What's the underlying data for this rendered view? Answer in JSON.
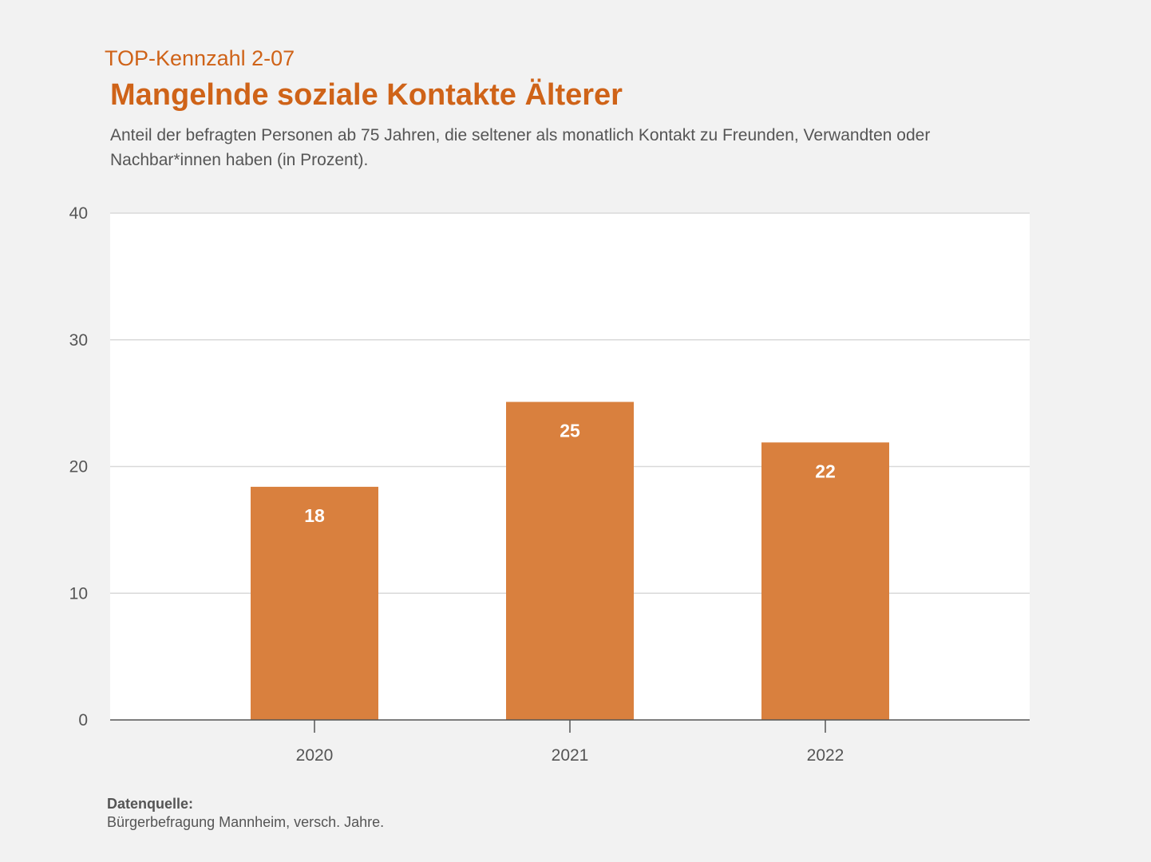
{
  "header": {
    "kicker": "TOP-Kennzahl 2-07",
    "title": "Mangelnde soziale Kontakte Älterer",
    "subtitle": "Anteil der befragten Personen ab 75 Jahren, die seltener als monatlich Kontakt zu Freunden, Verwandten oder Nachbar*innen haben (in Prozent)."
  },
  "chart_data": {
    "type": "bar",
    "title": "Mangelnde soziale Kontakte Älterer",
    "subtitle": "Anteil der befragten Personen ab 75 Jahren, die seltener als monatlich Kontakt zu Freunden, Verwandten oder Nachbar*innen haben (in Prozent).",
    "categories": [
      "2020",
      "2021",
      "2022"
    ],
    "values": [
      18.4,
      25.1,
      21.9
    ],
    "value_labels": [
      "18",
      "25",
      "22"
    ],
    "xlabel": "",
    "ylabel": "",
    "ylim": [
      0,
      40
    ],
    "yticks": [
      "0",
      "10",
      "20",
      "30",
      "40"
    ],
    "grid": true,
    "legend": "none",
    "bar_color": "#d9803e",
    "plot_background": "#ffffff",
    "grid_color": "#d9d9d9"
  },
  "source": {
    "heading": "Datenquelle:",
    "text": "Bürgerbefragung Mannheim, versch. Jahre."
  }
}
